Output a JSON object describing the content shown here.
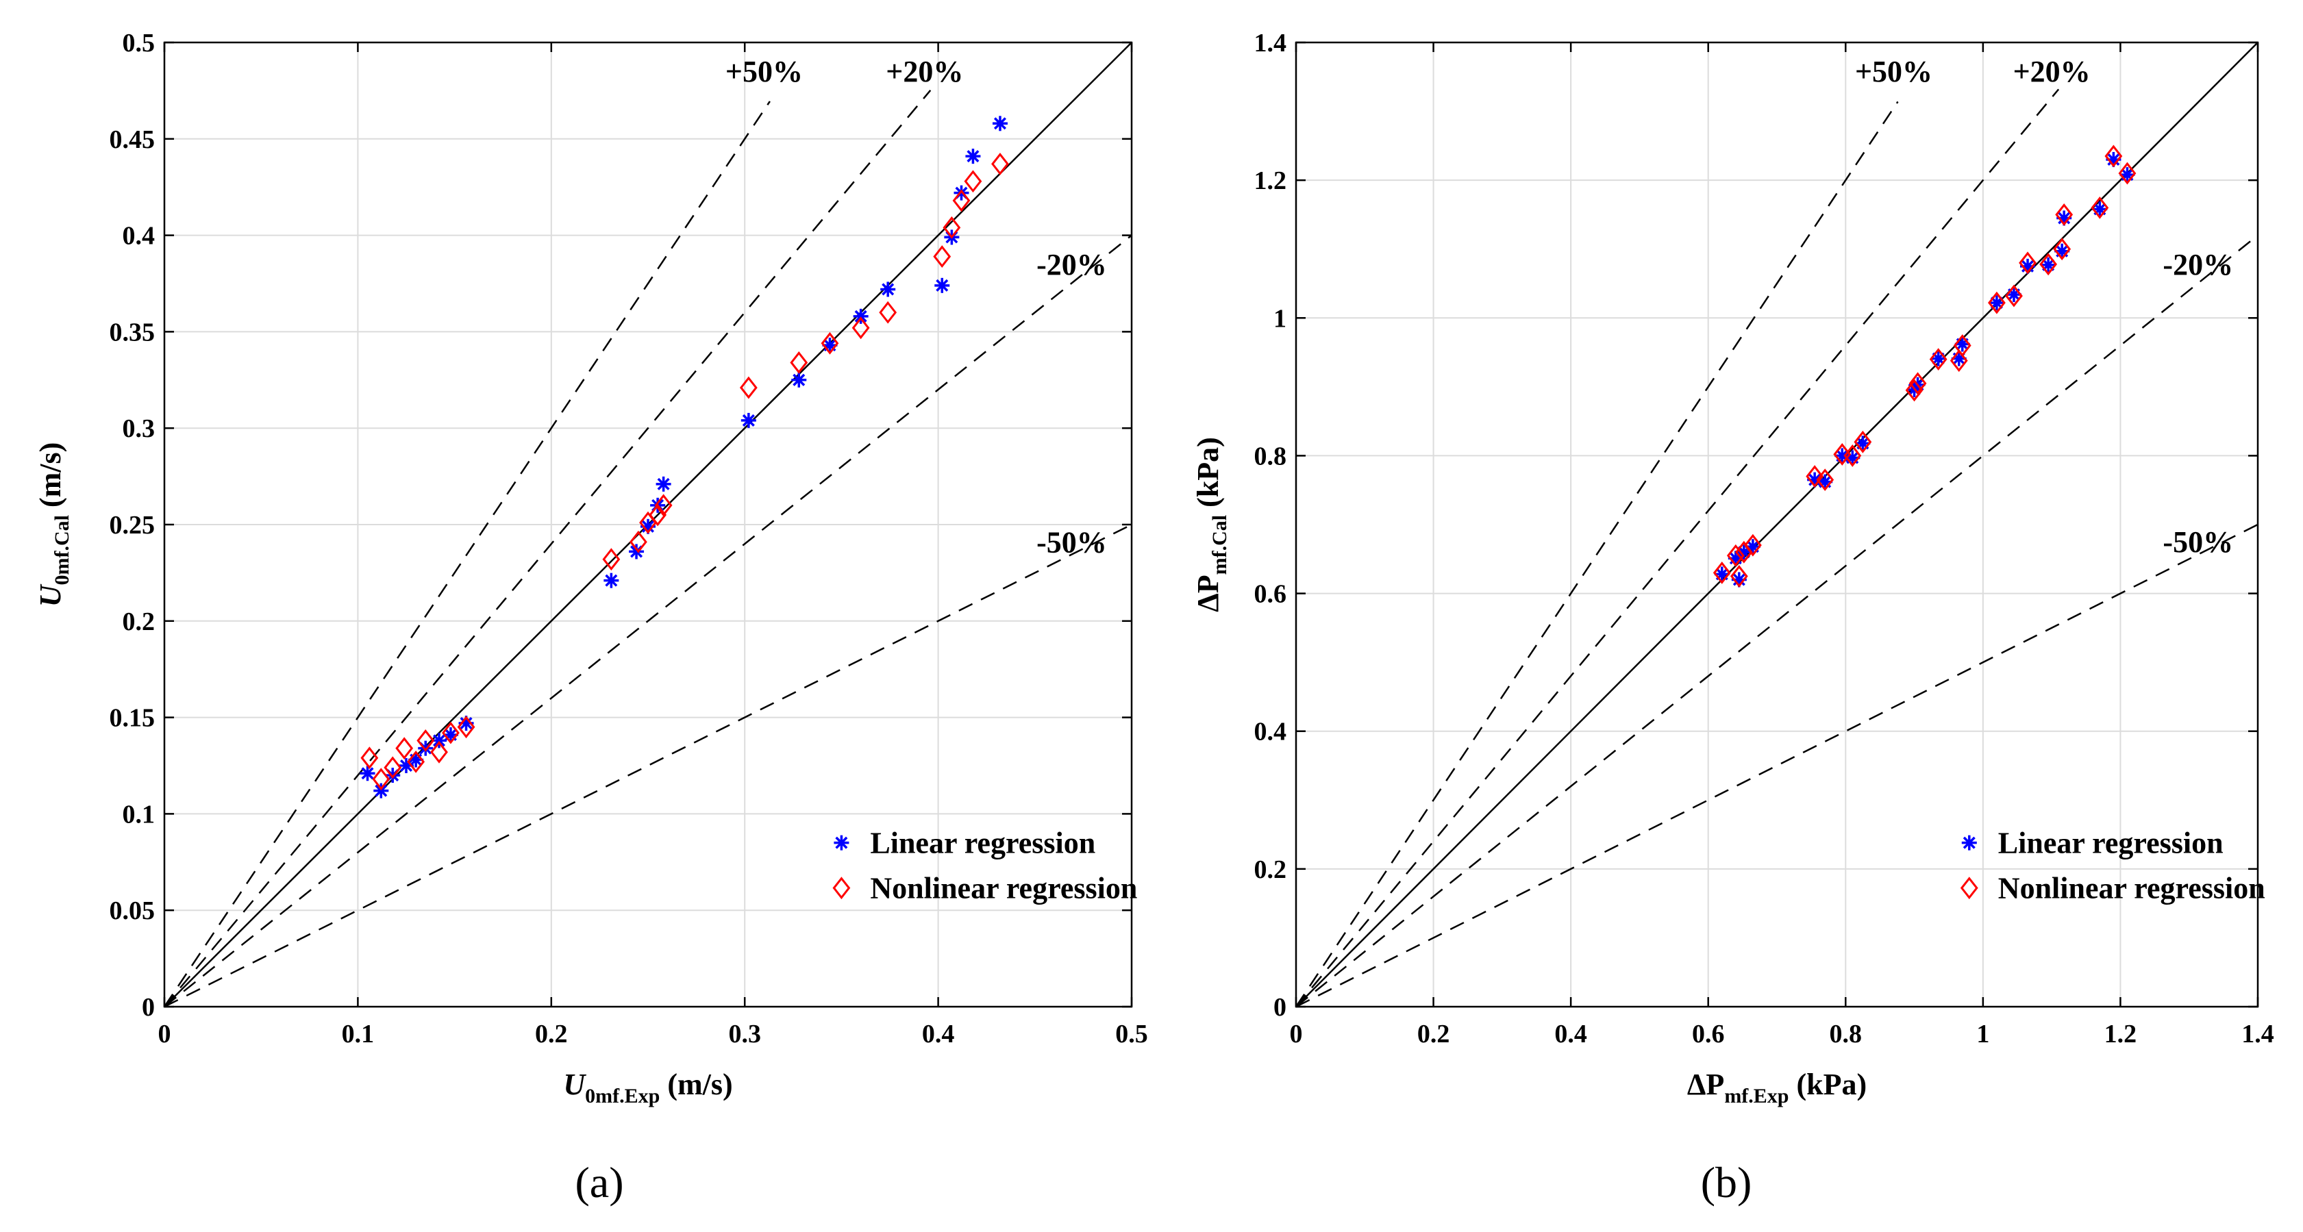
{
  "chart_data": [
    {
      "type": "scatter",
      "panel_label": "(a)",
      "xlabel": {
        "main": "U",
        "sub": "0mf.Exp",
        "unit": " (m/s)"
      },
      "ylabel": {
        "main": "U",
        "sub": "0mf.Cal",
        "unit": " (m/s)"
      },
      "xlim": [
        0,
        0.5
      ],
      "ylim": [
        0,
        0.5
      ],
      "xticks": [
        0,
        0.1,
        0.2,
        0.3,
        0.4,
        0.5
      ],
      "yticks": [
        0,
        0.05,
        0.1,
        0.15,
        0.2,
        0.25,
        0.3,
        0.35,
        0.4,
        0.45,
        0.5
      ],
      "xtick_labels": [
        "0",
        "0.1",
        "0.2",
        "0.3",
        "0.4",
        "0.5"
      ],
      "ytick_labels": [
        "0",
        "0.05",
        "0.1",
        "0.15",
        "0.2",
        "0.25",
        "0.3",
        "0.35",
        "0.4",
        "0.45",
        "0.5"
      ],
      "grid": true,
      "reference_lines": [
        {
          "label": "",
          "factor": 1.0,
          "style": "solid",
          "x_end": 0.5
        },
        {
          "label": "+50%",
          "factor": 1.5,
          "style": "dashed",
          "x_end": 0.313
        },
        {
          "label": "+20%",
          "factor": 1.2,
          "style": "dashed",
          "x_end": 0.396
        },
        {
          "label": "-20%",
          "factor": 0.8,
          "style": "dashed",
          "x_end": 0.5
        },
        {
          "label": "-50%",
          "factor": 0.5,
          "style": "dashed",
          "x_end": 0.5
        }
      ],
      "reference_annotations": [
        {
          "text": "+50%",
          "x": 0.31,
          "y": 0.485
        },
        {
          "text": "+20%",
          "x": 0.393,
          "y": 0.485
        },
        {
          "text": "-20%",
          "x": 0.469,
          "y": 0.385
        },
        {
          "text": "-50%",
          "x": 0.469,
          "y": 0.241
        }
      ],
      "legend_position": "bottom-right",
      "series": [
        {
          "name": "Linear regression",
          "marker": "asterisk",
          "color": "#0000ff",
          "points": [
            [
              0.105,
              0.121
            ],
            [
              0.112,
              0.112
            ],
            [
              0.118,
              0.12
            ],
            [
              0.125,
              0.125
            ],
            [
              0.13,
              0.128
            ],
            [
              0.135,
              0.134
            ],
            [
              0.142,
              0.138
            ],
            [
              0.148,
              0.141
            ],
            [
              0.156,
              0.147
            ],
            [
              0.231,
              0.221
            ],
            [
              0.244,
              0.236
            ],
            [
              0.25,
              0.249
            ],
            [
              0.255,
              0.26
            ],
            [
              0.258,
              0.271
            ],
            [
              0.302,
              0.304
            ],
            [
              0.328,
              0.325
            ],
            [
              0.344,
              0.343
            ],
            [
              0.36,
              0.358
            ],
            [
              0.374,
              0.372
            ],
            [
              0.402,
              0.374
            ],
            [
              0.407,
              0.399
            ],
            [
              0.412,
              0.422
            ],
            [
              0.418,
              0.441
            ],
            [
              0.432,
              0.458
            ]
          ]
        },
        {
          "name": "Nonlinear regression",
          "marker": "diamond",
          "color": "#ff0000",
          "points": [
            [
              0.106,
              0.129
            ],
            [
              0.112,
              0.118
            ],
            [
              0.118,
              0.124
            ],
            [
              0.124,
              0.134
            ],
            [
              0.13,
              0.127
            ],
            [
              0.135,
              0.138
            ],
            [
              0.142,
              0.132
            ],
            [
              0.148,
              0.142
            ],
            [
              0.156,
              0.145
            ],
            [
              0.231,
              0.232
            ],
            [
              0.245,
              0.241
            ],
            [
              0.25,
              0.251
            ],
            [
              0.255,
              0.255
            ],
            [
              0.258,
              0.26
            ],
            [
              0.302,
              0.321
            ],
            [
              0.328,
              0.334
            ],
            [
              0.344,
              0.344
            ],
            [
              0.36,
              0.352
            ],
            [
              0.374,
              0.36
            ],
            [
              0.402,
              0.389
            ],
            [
              0.407,
              0.404
            ],
            [
              0.412,
              0.418
            ],
            [
              0.418,
              0.428
            ],
            [
              0.432,
              0.437
            ]
          ]
        }
      ]
    },
    {
      "type": "scatter",
      "panel_label": "(b)",
      "xlabel": {
        "main": "ΔP",
        "sub": "mf.Exp",
        "unit": " (kPa)"
      },
      "ylabel": {
        "main": "ΔP",
        "sub": "mf.Cal",
        "unit": " (kPa)"
      },
      "xlim": [
        0,
        1.4
      ],
      "ylim": [
        0,
        1.4
      ],
      "xticks": [
        0,
        0.2,
        0.4,
        0.6,
        0.8,
        1.0,
        1.2,
        1.4
      ],
      "yticks": [
        0,
        0.2,
        0.4,
        0.6,
        0.8,
        1.0,
        1.2,
        1.4
      ],
      "xtick_labels": [
        "0",
        "0.2",
        "0.4",
        "0.6",
        "0.8",
        "1",
        "1.2",
        "1.4"
      ],
      "ytick_labels": [
        "0",
        "0.2",
        "0.4",
        "0.6",
        "0.8",
        "1",
        "1.2",
        "1.4"
      ],
      "grid": true,
      "reference_lines": [
        {
          "label": "",
          "factor": 1.0,
          "style": "solid",
          "x_end": 1.4
        },
        {
          "label": "+50%",
          "factor": 1.5,
          "style": "dashed",
          "x_end": 0.876
        },
        {
          "label": "+20%",
          "factor": 1.2,
          "style": "dashed",
          "x_end": 1.11
        },
        {
          "label": "-20%",
          "factor": 0.8,
          "style": "dashed",
          "x_end": 1.4
        },
        {
          "label": "-50%",
          "factor": 0.5,
          "style": "dashed",
          "x_end": 1.4
        }
      ],
      "reference_annotations": [
        {
          "text": "+50%",
          "x": 0.87,
          "y": 1.358
        },
        {
          "text": "+20%",
          "x": 1.1,
          "y": 1.358
        },
        {
          "text": "-20%",
          "x": 1.313,
          "y": 1.078
        },
        {
          "text": "-50%",
          "x": 1.313,
          "y": 0.675
        }
      ],
      "legend_position": "bottom-right",
      "series": [
        {
          "name": "Linear regression",
          "marker": "asterisk",
          "color": "#0000ff",
          "points": [
            [
              0.62,
              0.628
            ],
            [
              0.64,
              0.651
            ],
            [
              0.645,
              0.62
            ],
            [
              0.652,
              0.66
            ],
            [
              0.665,
              0.668
            ],
            [
              0.755,
              0.765
            ],
            [
              0.77,
              0.762
            ],
            [
              0.795,
              0.8
            ],
            [
              0.81,
              0.797
            ],
            [
              0.825,
              0.818
            ],
            [
              0.9,
              0.896
            ],
            [
              0.905,
              0.903
            ],
            [
              0.935,
              0.941
            ],
            [
              0.965,
              0.941
            ],
            [
              0.97,
              0.962
            ],
            [
              1.02,
              1.022
            ],
            [
              1.045,
              1.034
            ],
            [
              1.065,
              1.075
            ],
            [
              1.095,
              1.077
            ],
            [
              1.115,
              1.097
            ],
            [
              1.118,
              1.145
            ],
            [
              1.17,
              1.158
            ],
            [
              1.19,
              1.23
            ],
            [
              1.21,
              1.208
            ]
          ]
        },
        {
          "name": "Nonlinear regression",
          "marker": "diamond",
          "color": "#ff0000",
          "points": [
            [
              0.62,
              0.63
            ],
            [
              0.64,
              0.655
            ],
            [
              0.645,
              0.625
            ],
            [
              0.652,
              0.66
            ],
            [
              0.665,
              0.67
            ],
            [
              0.755,
              0.77
            ],
            [
              0.77,
              0.765
            ],
            [
              0.795,
              0.802
            ],
            [
              0.81,
              0.8
            ],
            [
              0.825,
              0.82
            ],
            [
              0.9,
              0.895
            ],
            [
              0.905,
              0.905
            ],
            [
              0.935,
              0.94
            ],
            [
              0.965,
              0.938
            ],
            [
              0.97,
              0.96
            ],
            [
              1.02,
              1.022
            ],
            [
              1.045,
              1.032
            ],
            [
              1.065,
              1.08
            ],
            [
              1.095,
              1.078
            ],
            [
              1.115,
              1.1
            ],
            [
              1.118,
              1.15
            ],
            [
              1.17,
              1.16
            ],
            [
              1.19,
              1.235
            ],
            [
              1.21,
              1.21
            ]
          ]
        }
      ]
    }
  ]
}
